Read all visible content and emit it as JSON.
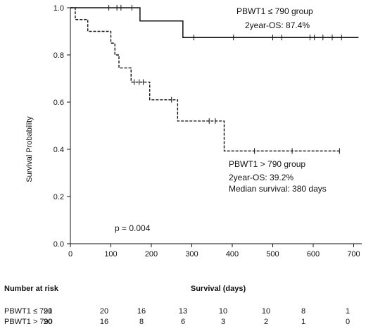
{
  "chart_data": {
    "type": "line",
    "subtype": "kaplan-meier",
    "ylabel": "Survival Probability",
    "xlabel": "Survival (days)",
    "xlim": [
      0,
      720
    ],
    "ylim": [
      0,
      1
    ],
    "x_ticks": [
      "0",
      "100",
      "200",
      "300",
      "400",
      "500",
      "600",
      "700"
    ],
    "x_tick_values": [
      0,
      100,
      200,
      300,
      400,
      500,
      600,
      700
    ],
    "y_ticks": [
      "0.0",
      "0.2",
      "0.4",
      "0.6",
      "0.8",
      "1.0"
    ],
    "y_tick_values": [
      0,
      0.2,
      0.4,
      0.6,
      0.8,
      1.0
    ],
    "grid": false,
    "series": [
      {
        "name": "PBWT1 ≤ 790 group",
        "line_style": "solid",
        "color": "#111111",
        "steps": [
          [
            0,
            1.0
          ],
          [
            172,
            0.944
          ],
          [
            278,
            0.874
          ],
          [
            712,
            0.874
          ]
        ],
        "censored": [
          [
            95,
            1.0
          ],
          [
            115,
            1.0
          ],
          [
            125,
            1.0
          ],
          [
            152,
            1.0
          ],
          [
            305,
            0.874
          ],
          [
            403,
            0.874
          ],
          [
            500,
            0.874
          ],
          [
            522,
            0.874
          ],
          [
            592,
            0.874
          ],
          [
            603,
            0.874
          ],
          [
            624,
            0.874
          ],
          [
            647,
            0.874
          ],
          [
            670,
            0.874
          ]
        ]
      },
      {
        "name": "PBWT1 > 790 group",
        "line_style": "dashed",
        "color": "#111111",
        "steps": [
          [
            0,
            1.0
          ],
          [
            12,
            0.95
          ],
          [
            43,
            0.9
          ],
          [
            100,
            0.85
          ],
          [
            110,
            0.8
          ],
          [
            120,
            0.745
          ],
          [
            150,
            0.685
          ],
          [
            196,
            0.61
          ],
          [
            265,
            0.52
          ],
          [
            380,
            0.393
          ],
          [
            665,
            0.393
          ]
        ],
        "censored": [
          [
            158,
            0.685
          ],
          [
            170,
            0.685
          ],
          [
            180,
            0.685
          ],
          [
            250,
            0.61
          ],
          [
            343,
            0.52
          ],
          [
            358,
            0.52
          ],
          [
            455,
            0.393
          ],
          [
            548,
            0.393
          ],
          [
            665,
            0.393
          ]
        ]
      }
    ],
    "annotations": {
      "group1_title": "PBWT1 ≤ 790 group",
      "group1_os": "2year-OS: 87.4%",
      "group2_title": "PBWT1 > 790 group",
      "group2_os": "2year-OS: 39.2%",
      "group2_median": "Median survival:  380 days",
      "pvalue": "p = 0.004"
    },
    "risk_table": {
      "title": "Number at risk",
      "rows": [
        {
          "label": "PBWT1 ≤ 790",
          "values": [
            "21",
            "20",
            "16",
            "13",
            "10",
            "10",
            "8",
            "1"
          ]
        },
        {
          "label": "PBWT1 > 790",
          "values": [
            "20",
            "16",
            "8",
            "6",
            "3",
            "2",
            "1",
            "0"
          ]
        }
      ]
    }
  }
}
